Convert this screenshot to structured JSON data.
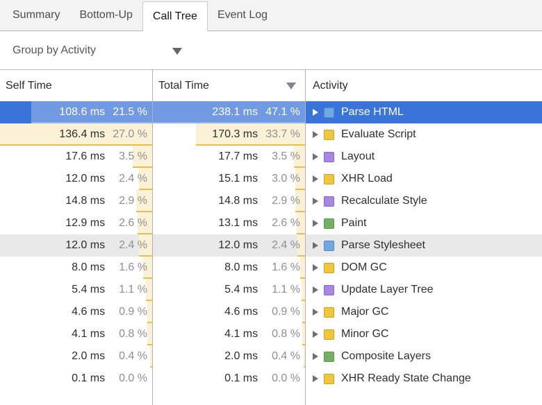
{
  "tabs": [
    {
      "label": "Summary",
      "active": false
    },
    {
      "label": "Bottom-Up",
      "active": false
    },
    {
      "label": "Call Tree",
      "active": true
    },
    {
      "label": "Event Log",
      "active": false
    }
  ],
  "toolbar": {
    "group_by_label": "Group by Activity",
    "dropdown_icon": "triangle-down"
  },
  "grid": {
    "columns": {
      "self": "Self Time",
      "total": "Total Time",
      "activity": "Activity"
    },
    "sort": {
      "column": "total",
      "direction": "desc",
      "icon": "triangle-down"
    },
    "self_pct_max": 27.0,
    "total_pct_max": 47.1,
    "rows": [
      {
        "self_ms": "108.6 ms",
        "self_pct": 21.5,
        "self_pct_label": "21.5 %",
        "total_ms": "238.1 ms",
        "total_pct": 47.1,
        "total_pct_label": "47.1 %",
        "activity": "Parse HTML",
        "category": "loading",
        "state": "selected"
      },
      {
        "self_ms": "136.4 ms",
        "self_pct": 27.0,
        "self_pct_label": "27.0 %",
        "total_ms": "170.3 ms",
        "total_pct": 33.7,
        "total_pct_label": "33.7 %",
        "activity": "Evaluate Script",
        "category": "scripting",
        "state": ""
      },
      {
        "self_ms": "17.6 ms",
        "self_pct": 3.5,
        "self_pct_label": "3.5 %",
        "total_ms": "17.7 ms",
        "total_pct": 3.5,
        "total_pct_label": "3.5 %",
        "activity": "Layout",
        "category": "rendering",
        "state": ""
      },
      {
        "self_ms": "12.0 ms",
        "self_pct": 2.4,
        "self_pct_label": "2.4 %",
        "total_ms": "15.1 ms",
        "total_pct": 3.0,
        "total_pct_label": "3.0 %",
        "activity": "XHR Load",
        "category": "scripting",
        "state": ""
      },
      {
        "self_ms": "14.8 ms",
        "self_pct": 2.9,
        "self_pct_label": "2.9 %",
        "total_ms": "14.8 ms",
        "total_pct": 2.9,
        "total_pct_label": "2.9 %",
        "activity": "Recalculate Style",
        "category": "rendering",
        "state": ""
      },
      {
        "self_ms": "12.9 ms",
        "self_pct": 2.6,
        "self_pct_label": "2.6 %",
        "total_ms": "13.1 ms",
        "total_pct": 2.6,
        "total_pct_label": "2.6 %",
        "activity": "Paint",
        "category": "painting",
        "state": ""
      },
      {
        "self_ms": "12.0 ms",
        "self_pct": 2.4,
        "self_pct_label": "2.4 %",
        "total_ms": "12.0 ms",
        "total_pct": 2.4,
        "total_pct_label": "2.4 %",
        "activity": "Parse Stylesheet",
        "category": "loading",
        "state": "hover"
      },
      {
        "self_ms": "8.0 ms",
        "self_pct": 1.6,
        "self_pct_label": "1.6 %",
        "total_ms": "8.0 ms",
        "total_pct": 1.6,
        "total_pct_label": "1.6 %",
        "activity": "DOM GC",
        "category": "scripting",
        "state": ""
      },
      {
        "self_ms": "5.4 ms",
        "self_pct": 1.1,
        "self_pct_label": "1.1 %",
        "total_ms": "5.4 ms",
        "total_pct": 1.1,
        "total_pct_label": "1.1 %",
        "activity": "Update Layer Tree",
        "category": "rendering",
        "state": ""
      },
      {
        "self_ms": "4.6 ms",
        "self_pct": 0.9,
        "self_pct_label": "0.9 %",
        "total_ms": "4.6 ms",
        "total_pct": 0.9,
        "total_pct_label": "0.9 %",
        "activity": "Major GC",
        "category": "scripting",
        "state": ""
      },
      {
        "self_ms": "4.1 ms",
        "self_pct": 0.8,
        "self_pct_label": "0.8 %",
        "total_ms": "4.1 ms",
        "total_pct": 0.8,
        "total_pct_label": "0.8 %",
        "activity": "Minor GC",
        "category": "scripting",
        "state": ""
      },
      {
        "self_ms": "2.0 ms",
        "self_pct": 0.4,
        "self_pct_label": "0.4 %",
        "total_ms": "2.0 ms",
        "total_pct": 0.4,
        "total_pct_label": "0.4 %",
        "activity": "Composite Layers",
        "category": "painting",
        "state": ""
      },
      {
        "self_ms": "0.1 ms",
        "self_pct": 0.0,
        "self_pct_label": "0.0 %",
        "total_ms": "0.1 ms",
        "total_pct": 0.0,
        "total_pct_label": "0.0 %",
        "activity": "XHR Ready State Change",
        "category": "scripting",
        "state": ""
      }
    ]
  },
  "colors": {
    "selection_blue": "#3b74d9",
    "hover_gray": "#e9e9e9",
    "heat_bar_fill": "#faf1d6",
    "heat_bar_edge": "#e7c04a",
    "categories": {
      "loading": {
        "fill": "#73a7e0",
        "border": "#4d87cf",
        "dotted": false
      },
      "scripting": {
        "fill": "#f0c53f",
        "border": "#cfa21d",
        "dotted": true
      },
      "rendering": {
        "fill": "#a787e4",
        "border": "#8a63d4",
        "dotted": false
      },
      "painting": {
        "fill": "#72b163",
        "border": "#549a49",
        "dotted": false
      }
    }
  }
}
